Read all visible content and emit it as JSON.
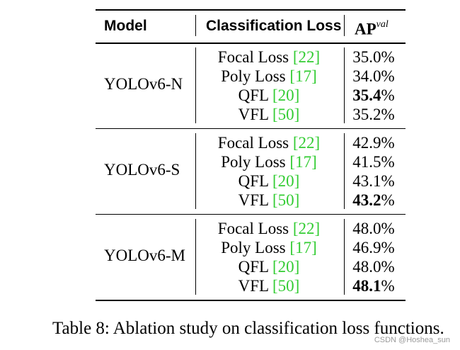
{
  "table": {
    "headers": {
      "model": "Model",
      "loss": "Classification Loss",
      "ap": "AP",
      "ap_superscript": "val"
    },
    "groups": [
      {
        "model": "YOLOv6-N",
        "rows": [
          {
            "loss": "Focal Loss",
            "cite": "22",
            "ap": "35.0",
            "ap_unit": "%",
            "bold": false
          },
          {
            "loss": "Poly Loss",
            "cite": "17",
            "ap": "34.0",
            "ap_unit": "%",
            "bold": false
          },
          {
            "loss": "QFL",
            "cite": "20",
            "ap": "35.4",
            "ap_unit": "%",
            "bold": true
          },
          {
            "loss": "VFL",
            "cite": "50",
            "ap": "35.2",
            "ap_unit": "%",
            "bold": false
          }
        ]
      },
      {
        "model": "YOLOv6-S",
        "rows": [
          {
            "loss": "Focal Loss",
            "cite": "22",
            "ap": "42.9",
            "ap_unit": "%",
            "bold": false
          },
          {
            "loss": "Poly Loss",
            "cite": "17",
            "ap": "41.5",
            "ap_unit": "%",
            "bold": false
          },
          {
            "loss": "QFL",
            "cite": "20",
            "ap": "43.1",
            "ap_unit": "%",
            "bold": false
          },
          {
            "loss": "VFL",
            "cite": "50",
            "ap": "43.2",
            "ap_unit": "%",
            "bold": true
          }
        ]
      },
      {
        "model": "YOLOv6-M",
        "rows": [
          {
            "loss": "Focal Loss",
            "cite": "22",
            "ap": "48.0",
            "ap_unit": "%",
            "bold": false
          },
          {
            "loss": "Poly Loss",
            "cite": "17",
            "ap": "46.9",
            "ap_unit": "%",
            "bold": false
          },
          {
            "loss": "QFL",
            "cite": "20",
            "ap": "48.0",
            "ap_unit": "%",
            "bold": false
          },
          {
            "loss": "VFL",
            "cite": "50",
            "ap": "48.1",
            "ap_unit": "%",
            "bold": true
          }
        ]
      }
    ]
  },
  "caption": "Table 8: Ablation study on classification loss functions.",
  "watermark": "CSDN @Hoshea_sun",
  "colors": {
    "citation": "#33cc33",
    "text": "#000000",
    "watermark": "#9a9a9a"
  }
}
